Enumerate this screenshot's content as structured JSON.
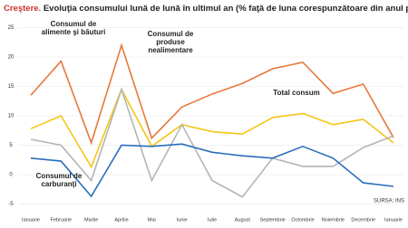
{
  "chart_data": {
    "type": "line",
    "title_lead": "Creştere.",
    "title": "Evoluţia consumului lună de lună în ultimul an (% faţă de luna corespunzătoare din anul precedent)",
    "source": "SURSA: INS",
    "categories": [
      "Ianuarie",
      "Februarie",
      "Martie",
      "Aprilie",
      "Mai",
      "Iunie",
      "Iulie",
      "August",
      "Septembrie",
      "Octombrie",
      "Noiembrie",
      "Decembrie",
      "Ianuarie"
    ],
    "series": [
      {
        "name": "Consumul de produse nealimentare",
        "color": "#e8773a",
        "values": [
          13.5,
          19.3,
          5.4,
          22,
          6.2,
          11.5,
          13.7,
          15.5,
          18,
          19.1,
          13.8,
          15.4,
          6.3
        ]
      },
      {
        "name": "Total consum",
        "color": "#f5c518",
        "values": [
          7.8,
          10,
          1.3,
          14.5,
          4.8,
          8.5,
          7.3,
          6.9,
          9.7,
          10.4,
          8.5,
          9.4,
          5.4
        ]
      },
      {
        "name": "Consumul de alimente şi băuturi",
        "color": "#b5b5b5",
        "values": [
          6,
          5,
          -1,
          14.5,
          -1,
          8.5,
          -1,
          -3.8,
          2.8,
          1.4,
          1.4,
          4.6,
          6.6
        ]
      },
      {
        "name": "Consumul de carburanţi",
        "color": "#2a6ebb",
        "values": [
          2.8,
          2.3,
          -3.7,
          5,
          4.8,
          5.2,
          3.8,
          3.2,
          2.8,
          4.8,
          2.8,
          -1.4,
          -2
        ]
      }
    ],
    "ylim": [
      -5,
      25
    ],
    "yticks": [
      -5,
      0,
      5,
      10,
      15,
      20,
      25
    ],
    "grid": true
  }
}
